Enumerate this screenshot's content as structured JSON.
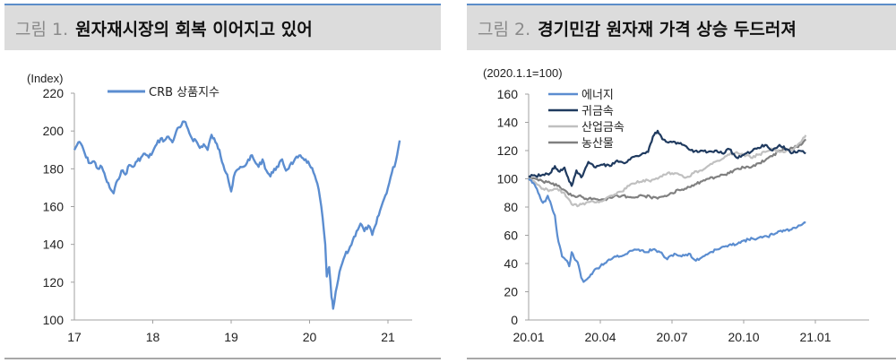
{
  "figures": [
    {
      "prefix": "그림 1.",
      "title": "원자재시장의 회복 이어지고 있어"
    },
    {
      "prefix": "그림 2.",
      "title": "경기민감 원자재 가격 상승 두드러져"
    }
  ],
  "colors": {
    "crb": "#5b8dd0",
    "energy": "#5b8dd0",
    "precious_metals": "#1f3a5f",
    "industrial_metals": "#c0c0c0",
    "agriculture": "#808080",
    "title_bar_bg": "#dcdcdc",
    "title_bar_top_border": "#5b8dc9",
    "axis": "#a0a0a0"
  },
  "chart_data": [
    {
      "type": "line",
      "title": "원자재시장의 회복 이어지고 있어",
      "unit_label": "(Index)",
      "xlabel": "",
      "ylabel": "Index",
      "ylim": [
        100,
        220
      ],
      "yticks": [
        100,
        120,
        140,
        160,
        180,
        200,
        220
      ],
      "xticks": [
        "17",
        "18",
        "19",
        "20",
        "21"
      ],
      "grid": false,
      "legend_position": "top-left",
      "series": [
        {
          "name": "CRB 상품지수",
          "x": [
            17.0,
            17.05,
            17.1,
            17.15,
            17.2,
            17.25,
            17.3,
            17.35,
            17.4,
            17.45,
            17.5,
            17.55,
            17.6,
            17.65,
            17.7,
            17.75,
            17.8,
            17.85,
            17.9,
            17.95,
            18.0,
            18.05,
            18.1,
            18.15,
            18.2,
            18.25,
            18.3,
            18.35,
            18.4,
            18.45,
            18.5,
            18.55,
            18.6,
            18.65,
            18.7,
            18.75,
            18.8,
            18.85,
            18.9,
            18.95,
            19.0,
            19.05,
            19.1,
            19.15,
            19.2,
            19.25,
            19.3,
            19.35,
            19.4,
            19.45,
            19.5,
            19.55,
            19.6,
            19.65,
            19.7,
            19.75,
            19.8,
            19.85,
            19.9,
            19.95,
            20.0,
            20.05,
            20.1,
            20.15,
            20.2,
            20.22,
            20.25,
            20.28,
            20.3,
            20.35,
            20.4,
            20.45,
            20.5,
            20.55,
            20.6,
            20.65,
            20.7,
            20.75,
            20.8,
            20.85,
            20.9,
            20.95,
            21.0,
            21.05,
            21.1,
            21.15
          ],
          "values": [
            190,
            194,
            192,
            186,
            183,
            184,
            180,
            181,
            175,
            170,
            167,
            174,
            179,
            177,
            182,
            181,
            184,
            186,
            188,
            186,
            189,
            193,
            196,
            195,
            197,
            194,
            200,
            202,
            205,
            201,
            196,
            195,
            191,
            193,
            190,
            198,
            194,
            190,
            182,
            177,
            168,
            178,
            180,
            181,
            183,
            187,
            184,
            181,
            185,
            179,
            176,
            180,
            181,
            185,
            179,
            182,
            184,
            186,
            186,
            185,
            182,
            178,
            172,
            160,
            140,
            123,
            128,
            112,
            106,
            118,
            128,
            134,
            137,
            142,
            147,
            151,
            147,
            150,
            145,
            151,
            158,
            164,
            170,
            178,
            184,
            195
          ]
        }
      ]
    },
    {
      "type": "line",
      "title": "경기민감 원자재 가격 상승 두드러져",
      "unit_label": "(2020.1.1=100)",
      "xlabel": "",
      "ylabel": "Index (2020.1.1=100)",
      "ylim": [
        0,
        160
      ],
      "yticks": [
        0,
        20,
        40,
        60,
        80,
        100,
        120,
        140,
        160
      ],
      "xticks": [
        "20.01",
        "20.04",
        "20.07",
        "20.10",
        "21.01"
      ],
      "grid": false,
      "legend_position": "top-left",
      "series": [
        {
          "name": "에너지",
          "x": [
            0,
            0.1,
            0.2,
            0.3,
            0.4,
            0.5,
            0.6,
            0.7,
            0.8,
            0.9,
            1.0,
            1.1,
            1.2,
            1.4,
            1.6,
            1.7,
            1.8,
            1.9,
            2.0,
            2.1,
            2.2,
            2.3,
            2.5,
            2.7,
            3.0,
            3.3,
            3.6,
            4.0,
            4.3,
            4.6,
            4.9,
            5.2,
            5.5,
            5.8,
            6.1,
            6.4,
            6.7,
            7.0,
            7.3,
            7.6,
            7.9,
            8.2,
            8.5,
            8.8,
            9.2,
            9.6,
            10.0,
            10.5,
            11.0,
            11.3,
            11.6
          ],
          "values": [
            100,
            99,
            97,
            94,
            90,
            86,
            83,
            84,
            88,
            84,
            78,
            74,
            60,
            45,
            42,
            38,
            48,
            44,
            42,
            38,
            30,
            27,
            30,
            34,
            38,
            42,
            45,
            46,
            49,
            50,
            48,
            50,
            48,
            43,
            47,
            45,
            47,
            42,
            45,
            48,
            50,
            52,
            53,
            55,
            57,
            58,
            59,
            63,
            64,
            67,
            69
          ]
        },
        {
          "name": "귀금속",
          "x": [
            0,
            0.3,
            0.6,
            0.9,
            1.1,
            1.3,
            1.5,
            1.7,
            1.8,
            2.0,
            2.2,
            2.5,
            2.8,
            3.1,
            3.4,
            3.7,
            4.0,
            4.3,
            4.6,
            5.0,
            5.2,
            5.4,
            5.6,
            5.8,
            6.0,
            6.3,
            6.6,
            6.9,
            7.2,
            7.5,
            7.8,
            8.1,
            8.4,
            8.7,
            9.0,
            9.3,
            9.6,
            9.9,
            10.2,
            10.5,
            10.8,
            11.0,
            11.3,
            11.6
          ],
          "values": [
            102,
            102,
            103,
            104,
            109,
            105,
            108,
            98,
            95,
            106,
            101,
            112,
            108,
            110,
            109,
            113,
            111,
            115,
            116,
            119,
            130,
            134,
            128,
            126,
            126,
            125,
            123,
            119,
            120,
            119,
            120,
            118,
            121,
            115,
            117,
            119,
            122,
            124,
            120,
            124,
            121,
            118,
            120,
            118
          ]
        },
        {
          "name": "산업금속",
          "x": [
            0,
            0.3,
            0.6,
            0.9,
            1.2,
            1.5,
            1.8,
            2.1,
            2.4,
            2.7,
            3.0,
            3.3,
            3.6,
            3.9,
            4.2,
            4.5,
            4.8,
            5.1,
            5.4,
            5.7,
            6.0,
            6.3,
            6.6,
            6.9,
            7.2,
            7.5,
            7.8,
            8.1,
            8.4,
            8.7,
            9.0,
            9.3,
            9.6,
            9.9,
            10.2,
            10.5,
            10.8,
            11.1,
            11.4,
            11.6
          ],
          "values": [
            100,
            97,
            93,
            92,
            93,
            90,
            82,
            81,
            83,
            84,
            84,
            87,
            89,
            91,
            95,
            97,
            99,
            98,
            100,
            103,
            104,
            103,
            101,
            104,
            106,
            109,
            112,
            114,
            117,
            119,
            117,
            115,
            117,
            119,
            121,
            119,
            120,
            121,
            126,
            131
          ]
        },
        {
          "name": "농산물",
          "x": [
            0,
            0.3,
            0.6,
            0.9,
            1.2,
            1.5,
            1.8,
            2.1,
            2.4,
            2.7,
            3.0,
            3.3,
            3.6,
            3.9,
            4.2,
            4.5,
            4.8,
            5.1,
            5.4,
            5.7,
            6.0,
            6.3,
            6.6,
            6.9,
            7.2,
            7.5,
            7.8,
            8.1,
            8.4,
            8.7,
            9.0,
            9.3,
            9.6,
            9.9,
            10.2,
            10.5,
            10.8,
            11.1,
            11.4,
            11.6
          ],
          "values": [
            100,
            100,
            98,
            97,
            95,
            92,
            88,
            88,
            86,
            86,
            85,
            86,
            88,
            88,
            87,
            87,
            88,
            87,
            86,
            88,
            90,
            92,
            93,
            95,
            98,
            100,
            101,
            103,
            104,
            107,
            108,
            108,
            111,
            113,
            116,
            120,
            121,
            122,
            124,
            128
          ]
        }
      ]
    }
  ]
}
